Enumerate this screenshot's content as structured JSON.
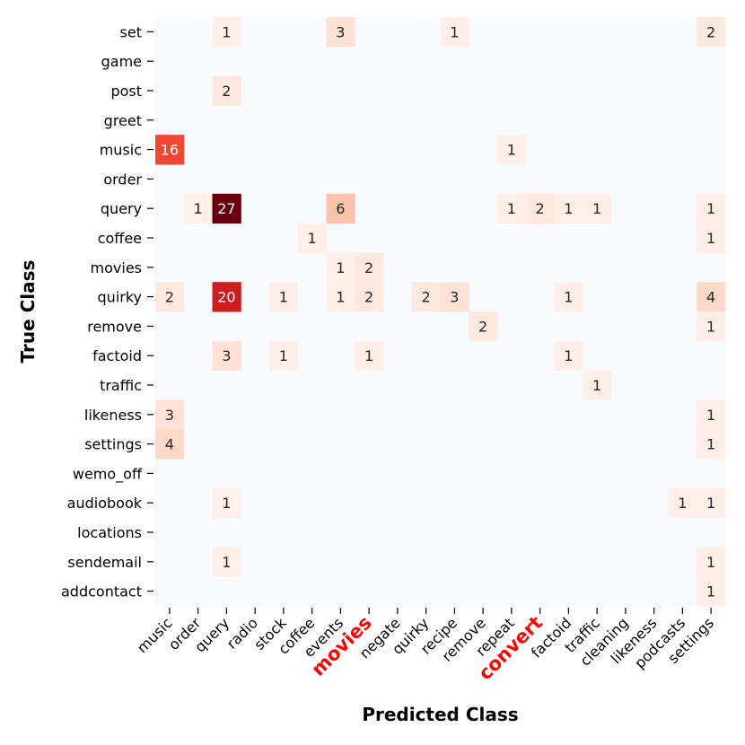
{
  "chart_data": {
    "type": "heatmap",
    "title": "",
    "xlabel": "Predicted Class",
    "ylabel": "True Class",
    "x_categories": [
      "music",
      "order",
      "query",
      "radio",
      "stock",
      "coffee",
      "events",
      "movies",
      "negate",
      "quirky",
      "recipe",
      "remove",
      "repeat",
      "convert",
      "factoid",
      "traffic",
      "cleaning",
      "likeness",
      "podcasts",
      "settings"
    ],
    "y_categories": [
      "set",
      "game",
      "post",
      "greet",
      "music",
      "order",
      "query",
      "coffee",
      "movies",
      "quirky",
      "remove",
      "factoid",
      "traffic",
      "likeness",
      "settings",
      "wemo_off",
      "audiobook",
      "locations",
      "sendemail",
      "addcontact"
    ],
    "highlighted_x_labels": [
      "movies",
      "convert"
    ],
    "highlight_color": "#ff0000",
    "empty_cell_color": "#f7fbff",
    "colormap": "Reds",
    "vmax": 27,
    "grid": false,
    "legend": "none",
    "cells": [
      {
        "row": "set",
        "col": "query",
        "value": 1
      },
      {
        "row": "set",
        "col": "events",
        "value": 3
      },
      {
        "row": "set",
        "col": "recipe",
        "value": 1
      },
      {
        "row": "set",
        "col": "settings",
        "value": 2
      },
      {
        "row": "post",
        "col": "query",
        "value": 2
      },
      {
        "row": "music",
        "col": "music",
        "value": 16
      },
      {
        "row": "music",
        "col": "repeat",
        "value": 1
      },
      {
        "row": "query",
        "col": "order",
        "value": 1
      },
      {
        "row": "query",
        "col": "query",
        "value": 27
      },
      {
        "row": "query",
        "col": "events",
        "value": 6
      },
      {
        "row": "query",
        "col": "repeat",
        "value": 1
      },
      {
        "row": "query",
        "col": "convert",
        "value": 2
      },
      {
        "row": "query",
        "col": "factoid",
        "value": 1
      },
      {
        "row": "query",
        "col": "traffic",
        "value": 1
      },
      {
        "row": "query",
        "col": "settings",
        "value": 1
      },
      {
        "row": "coffee",
        "col": "coffee",
        "value": 1
      },
      {
        "row": "coffee",
        "col": "settings",
        "value": 1
      },
      {
        "row": "movies",
        "col": "events",
        "value": 1
      },
      {
        "row": "movies",
        "col": "movies",
        "value": 2
      },
      {
        "row": "quirky",
        "col": "music",
        "value": 2
      },
      {
        "row": "quirky",
        "col": "query",
        "value": 20
      },
      {
        "row": "quirky",
        "col": "stock",
        "value": 1
      },
      {
        "row": "quirky",
        "col": "events",
        "value": 1
      },
      {
        "row": "quirky",
        "col": "movies",
        "value": 2
      },
      {
        "row": "quirky",
        "col": "quirky",
        "value": 2
      },
      {
        "row": "quirky",
        "col": "recipe",
        "value": 3
      },
      {
        "row": "quirky",
        "col": "factoid",
        "value": 1
      },
      {
        "row": "quirky",
        "col": "settings",
        "value": 4
      },
      {
        "row": "remove",
        "col": "remove",
        "value": 2
      },
      {
        "row": "remove",
        "col": "settings",
        "value": 1
      },
      {
        "row": "factoid",
        "col": "query",
        "value": 3
      },
      {
        "row": "factoid",
        "col": "stock",
        "value": 1
      },
      {
        "row": "factoid",
        "col": "movies",
        "value": 1
      },
      {
        "row": "factoid",
        "col": "factoid",
        "value": 1
      },
      {
        "row": "traffic",
        "col": "traffic",
        "value": 1
      },
      {
        "row": "likeness",
        "col": "music",
        "value": 3
      },
      {
        "row": "likeness",
        "col": "settings",
        "value": 1
      },
      {
        "row": "settings",
        "col": "music",
        "value": 4
      },
      {
        "row": "settings",
        "col": "settings",
        "value": 1
      },
      {
        "row": "audiobook",
        "col": "query",
        "value": 1
      },
      {
        "row": "audiobook",
        "col": "podcasts",
        "value": 1
      },
      {
        "row": "audiobook",
        "col": "settings",
        "value": 1
      },
      {
        "row": "sendemail",
        "col": "query",
        "value": 1
      },
      {
        "row": "sendemail",
        "col": "settings",
        "value": 1
      },
      {
        "row": "addcontact",
        "col": "settings",
        "value": 1
      }
    ]
  }
}
